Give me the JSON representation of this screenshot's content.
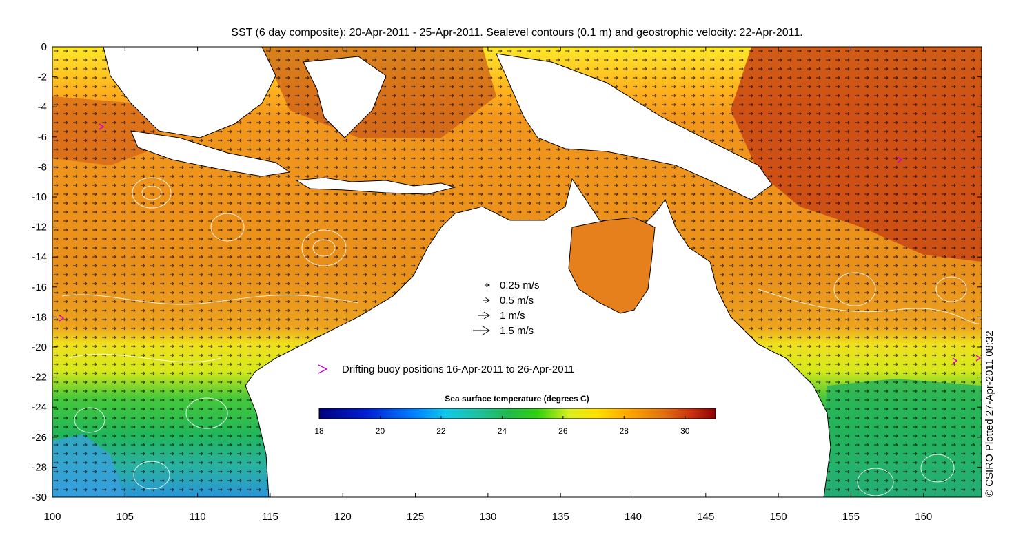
{
  "title": "SST (6 day composite): 20-Apr-2011 - 25-Apr-2011. Sealevel contours (0.1 m) and geostrophic velocity: 22-Apr-2011.",
  "credit": "© CSIRO Plotted 27-Apr-2011 08:32",
  "x_ticks": [
    "100",
    "105",
    "110",
    "115",
    "120",
    "125",
    "130",
    "135",
    "140",
    "145",
    "150",
    "155",
    "160"
  ],
  "y_ticks": [
    "0",
    "-2",
    "-4",
    "-6",
    "-8",
    "-10",
    "-12",
    "-14",
    "-16",
    "-18",
    "-20",
    "-22",
    "-24",
    "-26",
    "-28",
    "-30"
  ],
  "velocity_legend": [
    {
      "label": "0.25 m/s",
      "speed": 0.25
    },
    {
      "label": "0.5 m/s",
      "speed": 0.5
    },
    {
      "label": "1 m/s",
      "speed": 1
    },
    {
      "label": "1.5 m/s",
      "speed": 1.5
    }
  ],
  "buoy_legend": "Drifting buoy positions 16-Apr-2011 to 26-Apr-2011",
  "colorbar": {
    "title": "Sea surface temperature (degrees C)",
    "ticks": [
      "18",
      "20",
      "22",
      "24",
      "26",
      "28",
      "30"
    ],
    "min": 18,
    "max": 31
  },
  "colors": {
    "arrow": "#000000",
    "buoy": "#d000d0",
    "contour": "#ffffff",
    "land": "#ffffff",
    "coast": "#000000"
  },
  "map_extent": {
    "lon_min": 100,
    "lon_max": 164,
    "lat_min": -30,
    "lat_max": 0
  }
}
